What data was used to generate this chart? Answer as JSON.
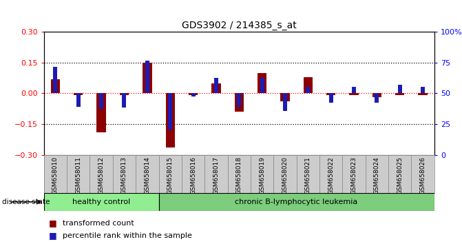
{
  "title": "GDS3902 / 214385_s_at",
  "samples": [
    "GSM658010",
    "GSM658011",
    "GSM658012",
    "GSM658013",
    "GSM658014",
    "GSM658015",
    "GSM658016",
    "GSM658017",
    "GSM658018",
    "GSM658019",
    "GSM658020",
    "GSM658021",
    "GSM658022",
    "GSM658023",
    "GSM658024",
    "GSM658025",
    "GSM658026"
  ],
  "red_bars": [
    0.07,
    -0.01,
    -0.19,
    -0.01,
    0.15,
    -0.265,
    -0.01,
    0.05,
    -0.09,
    0.1,
    -0.04,
    0.08,
    -0.01,
    -0.01,
    -0.02,
    -0.01,
    -0.01
  ],
  "blue_markers": [
    0.13,
    -0.065,
    -0.075,
    -0.07,
    0.16,
    -0.175,
    -0.015,
    0.075,
    -0.065,
    0.075,
    -0.085,
    0.03,
    -0.045,
    0.03,
    -0.045,
    0.04,
    0.03
  ],
  "groups": [
    {
      "label": "healthy control",
      "start": 0,
      "end": 5,
      "color": "#90EE90"
    },
    {
      "label": "chronic B-lymphocytic leukemia",
      "start": 5,
      "end": 17,
      "color": "#7CCD7C"
    }
  ],
  "disease_state_label": "disease state",
  "ylim": [
    -0.3,
    0.3
  ],
  "yticks_left": [
    -0.3,
    -0.15,
    0.0,
    0.15,
    0.3
  ],
  "yticks_right": [
    0,
    25,
    50,
    75,
    100
  ],
  "hlines": [
    0.15,
    0.0,
    -0.15
  ],
  "bar_color": "#8B0000",
  "marker_color": "#1C1CB4",
  "background_color": "#ffffff",
  "legend_transformed": "transformed count",
  "legend_percentile": "percentile rank within the sample"
}
